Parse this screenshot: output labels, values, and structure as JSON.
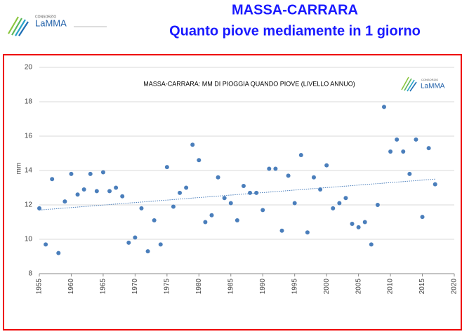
{
  "header": {
    "logo_small": "CONSORZIO",
    "logo": "LaMMA",
    "title": "MASSA-CARRARA",
    "subtitle": "Quanto piove mediamente in 1 giorno"
  },
  "chart_data": {
    "type": "scatter",
    "title": "MASSA-CARRARA: MM DI PIOGGIA QUANDO PIOVE  (LIVELLO ANNUO)",
    "logo_small": "CONSORZIO",
    "logo": "LaMMA",
    "y_label": "mm",
    "x": [
      1955,
      1956,
      1957,
      1958,
      1959,
      1960,
      1961,
      1962,
      1963,
      1964,
      1965,
      1966,
      1967,
      1968,
      1969,
      1970,
      1971,
      1972,
      1973,
      1974,
      1975,
      1976,
      1977,
      1978,
      1979,
      1980,
      1981,
      1982,
      1983,
      1984,
      1985,
      1986,
      1987,
      1988,
      1989,
      1990,
      1991,
      1992,
      1993,
      1994,
      1995,
      1996,
      1997,
      1998,
      1999,
      2000,
      2001,
      2002,
      2003,
      2004,
      2005,
      2006,
      2007,
      2008,
      2009,
      2010,
      2011,
      2012,
      2013,
      2014,
      2015,
      2016,
      2017
    ],
    "values": [
      11.8,
      9.7,
      13.5,
      9.2,
      12.2,
      13.8,
      12.6,
      12.9,
      13.8,
      12.8,
      13.9,
      12.8,
      13.0,
      12.5,
      9.8,
      10.1,
      11.8,
      9.3,
      11.1,
      9.7,
      14.2,
      11.9,
      12.7,
      13.0,
      15.5,
      14.6,
      11.0,
      11.4,
      13.6,
      12.4,
      12.1,
      11.1,
      13.1,
      12.7,
      12.7,
      11.7,
      14.1,
      14.1,
      10.5,
      13.7,
      12.1,
      14.9,
      10.4,
      13.6,
      12.9,
      14.3,
      11.8,
      12.1,
      12.4,
      10.9,
      10.7,
      11.0,
      9.7,
      12.0,
      17.7,
      15.1,
      15.8,
      15.1,
      13.8,
      15.8,
      11.3,
      15.3,
      13.2
    ],
    "color": "#4a7ebb",
    "trendline": {
      "x": [
        1955,
        2017
      ],
      "values": [
        11.7,
        13.5
      ],
      "color": "#4a7ebb"
    },
    "xlim": [
      1955,
      2020
    ],
    "xticks": [
      1955,
      1960,
      1965,
      1970,
      1975,
      1980,
      1985,
      1990,
      1995,
      2000,
      2005,
      2010,
      2015,
      2020
    ],
    "ylim": [
      8,
      20
    ],
    "yticks": [
      8,
      10,
      12,
      14,
      16,
      18,
      20
    ],
    "grid": true
  }
}
